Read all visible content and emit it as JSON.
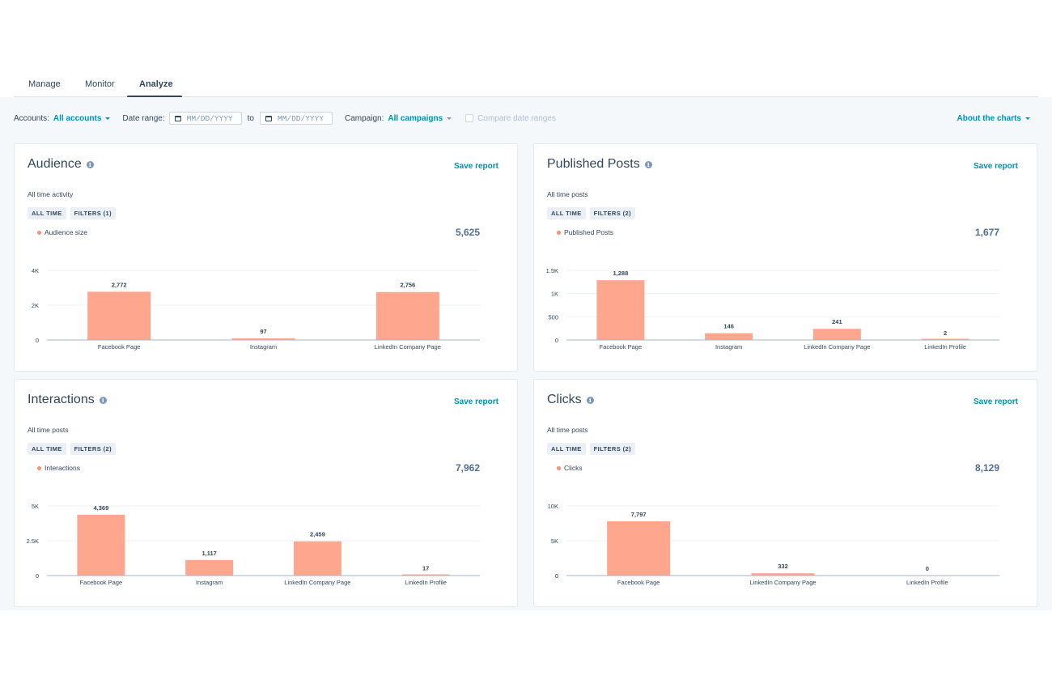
{
  "tabs": [
    {
      "label": "Manage"
    },
    {
      "label": "Monitor"
    },
    {
      "label": "Analyze",
      "active": true
    }
  ],
  "filters": {
    "accounts_label": "Accounts:",
    "accounts_value": "All accounts",
    "date_range_label": "Date range:",
    "date_from_placeholder": "MM/DD/YYYY",
    "to_label": "to",
    "date_to_placeholder": "MM/DD/YYYY",
    "campaign_label": "Campaign:",
    "campaign_value": "All campaigns",
    "compare_label": "Compare date ranges",
    "about_label": "About the charts"
  },
  "colors": {
    "bar": "#ffa68f",
    "accent": "#0091ae",
    "axis": "#a6b7c9",
    "grid": "#eef2f6"
  },
  "cards": [
    {
      "title": "Audience",
      "save_label": "Save report",
      "subtitle": "All time activity",
      "tags": [
        "ALL TIME",
        "FILTERS (1)"
      ],
      "legend": "Audience size",
      "total": "5,625",
      "chart_data": {
        "type": "bar",
        "categories": [
          "Facebook Page",
          "Instagram",
          "LinkedIn Company Page"
        ],
        "values": [
          2772,
          97,
          2756
        ],
        "value_labels": [
          "2,772",
          "97",
          "2,756"
        ],
        "yticks": [
          0,
          2000,
          4000
        ],
        "ytick_labels": [
          "0",
          "2K",
          "4K"
        ],
        "ylim": [
          0,
          4000
        ]
      }
    },
    {
      "title": "Published Posts",
      "save_label": "Save report",
      "subtitle": "All time posts",
      "tags": [
        "ALL TIME",
        "FILTERS (2)"
      ],
      "legend": "Published Posts",
      "total": "1,677",
      "chart_data": {
        "type": "bar",
        "categories": [
          "Facebook Page",
          "Instagram",
          "LinkedIn Company Page",
          "LinkedIn Profile"
        ],
        "values": [
          1288,
          146,
          241,
          2
        ],
        "value_labels": [
          "1,288",
          "146",
          "241",
          "2"
        ],
        "yticks": [
          0,
          500,
          1000,
          1500
        ],
        "ytick_labels": [
          "0",
          "500",
          "1K",
          "1.5K"
        ],
        "ylim": [
          0,
          1500
        ]
      }
    },
    {
      "title": "Interactions",
      "save_label": "Save report",
      "subtitle": "All time posts",
      "tags": [
        "ALL TIME",
        "FILTERS (2)"
      ],
      "legend": "Interactions",
      "total": "7,962",
      "chart_data": {
        "type": "bar",
        "categories": [
          "Facebook Page",
          "Instagram",
          "LinkedIn Company Page",
          "LinkedIn Profile"
        ],
        "values": [
          4369,
          1117,
          2459,
          17
        ],
        "value_labels": [
          "4,369",
          "1,117",
          "2,459",
          "17"
        ],
        "yticks": [
          0,
          2500,
          5000
        ],
        "ytick_labels": [
          "0",
          "2.5K",
          "5K"
        ],
        "ylim": [
          0,
          5000
        ]
      }
    },
    {
      "title": "Clicks",
      "save_label": "Save report",
      "subtitle": "All time posts",
      "tags": [
        "ALL TIME",
        "FILTERS (2)"
      ],
      "legend": "Clicks",
      "total": "8,129",
      "chart_data": {
        "type": "bar",
        "categories": [
          "Facebook Page",
          "LinkedIn Company Page",
          "LinkedIn Profile"
        ],
        "values": [
          7797,
          332,
          0
        ],
        "value_labels": [
          "7,797",
          "332",
          "0"
        ],
        "yticks": [
          0,
          5000,
          10000
        ],
        "ytick_labels": [
          "0",
          "5K",
          "10K"
        ],
        "ylim": [
          0,
          10000
        ]
      }
    }
  ]
}
